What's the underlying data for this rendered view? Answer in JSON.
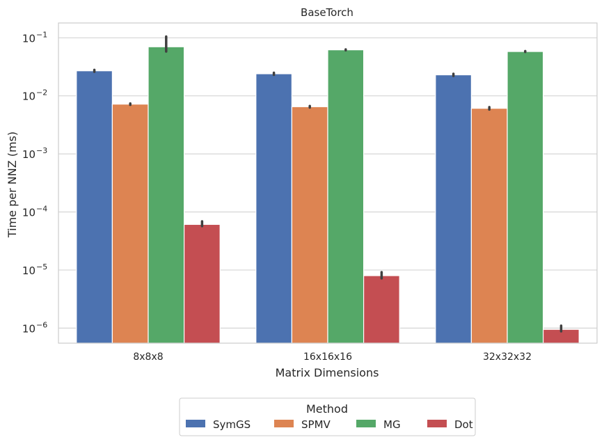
{
  "chart_data": {
    "type": "bar",
    "title": "BaseTorch",
    "xlabel": "Matrix Dimensions",
    "ylabel": "Time per NNZ (ms)",
    "yscale": "log",
    "ylim": [
      5.5e-07,
      0.18
    ],
    "yticks": [
      {
        "value": 1e-06,
        "base": "10",
        "exp": "−6"
      },
      {
        "value": 1e-05,
        "base": "10",
        "exp": "−5"
      },
      {
        "value": 0.0001,
        "base": "10",
        "exp": "−4"
      },
      {
        "value": 0.001,
        "base": "10",
        "exp": "−3"
      },
      {
        "value": 0.01,
        "base": "10",
        "exp": "−2"
      },
      {
        "value": 0.1,
        "base": "10",
        "exp": "−1"
      }
    ],
    "grid": true,
    "categories": [
      "8x8x8",
      "16x16x16",
      "32x32x32"
    ],
    "series": [
      {
        "name": "SymGS",
        "color": "#4c72b0",
        "values": [
          0.027,
          0.024,
          0.023
        ],
        "err_low": [
          0.026,
          0.023,
          0.022
        ],
        "err_high": [
          0.028,
          0.025,
          0.024
        ]
      },
      {
        "name": "SPMV",
        "color": "#dd8452",
        "values": [
          0.0072,
          0.0065,
          0.0061
        ],
        "err_low": [
          0.007,
          0.0063,
          0.0058
        ],
        "err_high": [
          0.0074,
          0.0067,
          0.0064
        ]
      },
      {
        "name": "MG",
        "color": "#55a868",
        "values": [
          0.07,
          0.062,
          0.058
        ],
        "err_low": [
          0.058,
          0.061,
          0.057
        ],
        "err_high": [
          0.105,
          0.063,
          0.059
        ]
      },
      {
        "name": "Dot",
        "color": "#c44e52",
        "values": [
          6.1e-05,
          8e-06,
          9.5e-07
        ],
        "err_low": [
          5.7e-05,
          7.2e-06,
          8.8e-07
        ],
        "err_high": [
          6.9e-05,
          9.2e-06,
          1.1e-06
        ]
      }
    ],
    "legend": {
      "title": "Method",
      "placement": "bottom-center"
    }
  }
}
